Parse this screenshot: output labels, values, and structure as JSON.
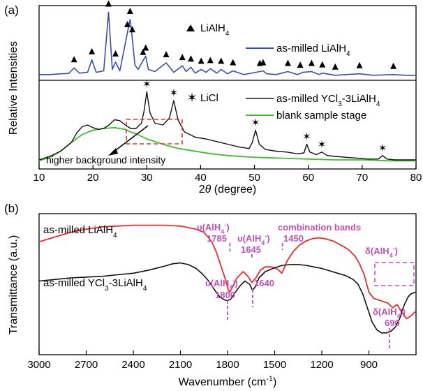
{
  "chart_data": [
    {
      "type": "line",
      "panel_label": "(a)",
      "xlabel_prefix": "2",
      "xlabel_italic": "θ",
      "xlabel_suffix": " (degree)",
      "ylabel": "Relative Intensities",
      "xlim": [
        10,
        80
      ],
      "xticks": [
        "10",
        "20",
        "30",
        "40",
        "50",
        "60",
        "70",
        "80"
      ],
      "legend": {
        "top_marker_label": "LiAlH",
        "top_marker_sub": "4",
        "top_series_label": "as-milled LiAlH",
        "top_series_sub": "4",
        "bottom_marker_label": "LiCl",
        "bottom_series_label_pre": "as-milled YCl",
        "bottom_series_sub1": "3",
        "bottom_series_label_mid": "-3LiAlH",
        "bottom_series_sub2": "4",
        "blank_label": "blank sample stage"
      },
      "annotation": "higher background intensity",
      "series": [
        {
          "name": "as-milled LiAlH4",
          "color": "#3a4fa8",
          "x": [
            10,
            12,
            14,
            15.5,
            16.5,
            17.5,
            19,
            19.8,
            20.6,
            22,
            22.9,
            23.6,
            24.2,
            25,
            26.4,
            26.9,
            27.3,
            27.8,
            28.4,
            29.3,
            29.8,
            30.3,
            31.5,
            33.6,
            35,
            36.6,
            37.3,
            38.2,
            39,
            40.1,
            41,
            41.8,
            43,
            43.8,
            45,
            46,
            48,
            51,
            51.6,
            52.3,
            54,
            56.2,
            58,
            59,
            60.6,
            62,
            62.6,
            65,
            67,
            69.5,
            72,
            75.8,
            78,
            80
          ],
          "y": [
            5,
            5,
            6,
            6.5,
            14,
            7,
            8,
            25,
            8,
            10,
            90,
            12,
            22,
            10,
            62,
            80,
            55,
            18,
            12,
            24,
            30,
            12,
            9,
            21,
            8,
            17,
            9,
            15,
            7,
            12,
            8,
            13,
            7,
            12,
            6,
            10,
            5,
            9,
            10,
            6,
            5,
            9,
            5,
            8,
            9,
            5,
            7,
            4,
            5,
            6,
            4,
            5,
            4,
            4
          ]
        },
        {
          "name": "as-milled YCl3-3LiAlH4",
          "color": "#111111",
          "x": [
            10,
            12,
            14,
            16,
            17,
            18,
            19,
            20,
            21,
            22,
            23,
            24,
            25,
            26,
            27,
            28,
            29,
            29.5,
            30,
            30.6,
            31.5,
            33,
            34.2,
            35,
            35.8,
            37,
            39,
            41,
            43,
            45,
            47,
            49,
            49.6,
            50.2,
            50.9,
            52,
            54,
            56,
            58,
            59.2,
            59.7,
            60.3,
            61.5,
            62.5,
            63.5,
            65,
            67,
            69,
            71,
            73,
            73.8,
            74.6,
            76,
            78,
            80
          ],
          "y": [
            4,
            8,
            14,
            24,
            35,
            42,
            44,
            41,
            39,
            40,
            44,
            50,
            49,
            44,
            40,
            40,
            46,
            60,
            82,
            58,
            46,
            44,
            52,
            72,
            50,
            36,
            30,
            28,
            25,
            22,
            19,
            17,
            24,
            38,
            22,
            16,
            14,
            13,
            11,
            12,
            22,
            13,
            10,
            13,
            9,
            8,
            7,
            6,
            5,
            5,
            9,
            5,
            4,
            4,
            4
          ]
        },
        {
          "name": "blank sample stage",
          "color": "#3fbf2f",
          "x": [
            10,
            12,
            14,
            16,
            18,
            20,
            22,
            24,
            26,
            27,
            28,
            29,
            30,
            32,
            34,
            36,
            38,
            40,
            42,
            45,
            50,
            55,
            60,
            65,
            70,
            75,
            80
          ],
          "y": [
            3,
            7,
            14,
            24,
            33,
            38,
            40,
            41,
            39,
            36,
            34,
            31,
            28,
            24,
            20,
            17,
            15,
            13,
            11,
            9,
            7,
            6,
            5,
            4,
            4,
            3,
            3
          ]
        }
      ],
      "markers_top": [
        16.5,
        19.8,
        22.9,
        24.2,
        26.4,
        26.9,
        27.3,
        29.3,
        29.8,
        33.6,
        36.6,
        38.2,
        40.1,
        41.8,
        43.8,
        46,
        51,
        51.6,
        56.2,
        58.5,
        60.6,
        62.6,
        65,
        69.5,
        75.8
      ],
      "markers_bottom": [
        30,
        35,
        50.2,
        59.7,
        62.5,
        73.8
      ]
    },
    {
      "type": "line",
      "panel_label": "(b)",
      "xlabel_pre": "Wavenumber (cm",
      "xlabel_sup": "-1",
      "xlabel_post": ")",
      "ylabel": "Transmittance (a.u.)",
      "xlim": [
        3000,
        600
      ],
      "xticks": [
        "3000",
        "2700",
        "2400",
        "2100",
        "1800",
        "1500",
        "1200",
        "900"
      ],
      "labels": {
        "red_pre": "as-milled LiAlH",
        "red_sub": "4",
        "black_pre": "as-milled YCl",
        "black_sub1": "3",
        "black_mid": "-3LiAlH",
        "black_sub2": "4",
        "nu": "υ(AlH",
        "delta": "δ(AlH",
        "sub4": "4",
        "supminus": "-",
        "close": ")",
        "combination": "combination bands",
        "v1785": "1785",
        "v1645": "1645",
        "v1450": "1450",
        "v1800": "1800",
        "v1640": "1640",
        "v690": "690"
      },
      "series": [
        {
          "name": "as-milled LiAlH4",
          "color": "#ee2a2a",
          "x": [
            3000,
            2900,
            2800,
            2700,
            2600,
            2500,
            2400,
            2300,
            2200,
            2100,
            2000,
            1950,
            1900,
            1870,
            1840,
            1810,
            1795,
            1785,
            1770,
            1740,
            1700,
            1670,
            1645,
            1620,
            1590,
            1560,
            1520,
            1480,
            1455,
            1440,
            1420,
            1380,
            1340,
            1300,
            1260,
            1220,
            1180,
            1130,
            1080,
            1030,
            990,
            960,
            930,
            900,
            870,
            840,
            810,
            780,
            750,
            720,
            690,
            660,
            630,
            600
          ],
          "y": [
            6.3,
            6.6,
            6.9,
            7.1,
            7.25,
            7.3,
            7.35,
            7.35,
            7.35,
            7.3,
            7.1,
            6.9,
            6.3,
            5.6,
            4.7,
            3.8,
            3.2,
            3.1,
            3.4,
            4.0,
            4.4,
            4.1,
            3.7,
            4.0,
            4.5,
            4.7,
            4.7,
            4.55,
            4.3,
            4.6,
            5.1,
            5.7,
            6.1,
            6.35,
            6.5,
            6.55,
            6.5,
            6.35,
            6.1,
            5.8,
            5.4,
            4.9,
            4.2,
            3.1,
            2.7,
            2.6,
            2.5,
            2.4,
            2.1,
            2.3,
            1.8,
            1.4,
            1.6,
            1.9
          ]
        },
        {
          "name": "as-milled YCl3-3LiAlH4",
          "color": "#111111",
          "x": [
            3000,
            2900,
            2800,
            2700,
            2600,
            2500,
            2400,
            2300,
            2200,
            2150,
            2100,
            2050,
            2000,
            1960,
            1920,
            1880,
            1850,
            1820,
            1800,
            1780,
            1750,
            1720,
            1690,
            1660,
            1640,
            1620,
            1600,
            1560,
            1500,
            1450,
            1400,
            1350,
            1300,
            1250,
            1200,
            1150,
            1100,
            1050,
            1000,
            970,
            940,
            910,
            880,
            850,
            820,
            790,
            760,
            730,
            700,
            690,
            670,
            650,
            630,
            600
          ],
          "y": [
            3.8,
            3.9,
            4.0,
            4.05,
            4.1,
            4.2,
            4.3,
            4.5,
            4.75,
            4.9,
            4.95,
            4.85,
            4.6,
            4.25,
            3.8,
            3.2,
            2.8,
            2.6,
            2.55,
            2.65,
            3.1,
            3.5,
            3.8,
            3.6,
            3.2,
            3.5,
            4.0,
            4.4,
            4.65,
            4.8,
            4.85,
            4.85,
            4.8,
            4.7,
            4.6,
            4.45,
            4.3,
            4.15,
            3.9,
            3.6,
            3.0,
            2.1,
            1.2,
            0.7,
            0.5,
            0.5,
            0.6,
            0.9,
            1.5,
            1.9,
            2.4,
            2.8,
            3.0,
            3.1
          ]
        }
      ],
      "guide_lines": [
        1785,
        1645,
        1450,
        1800,
        1640,
        770
      ]
    }
  ]
}
